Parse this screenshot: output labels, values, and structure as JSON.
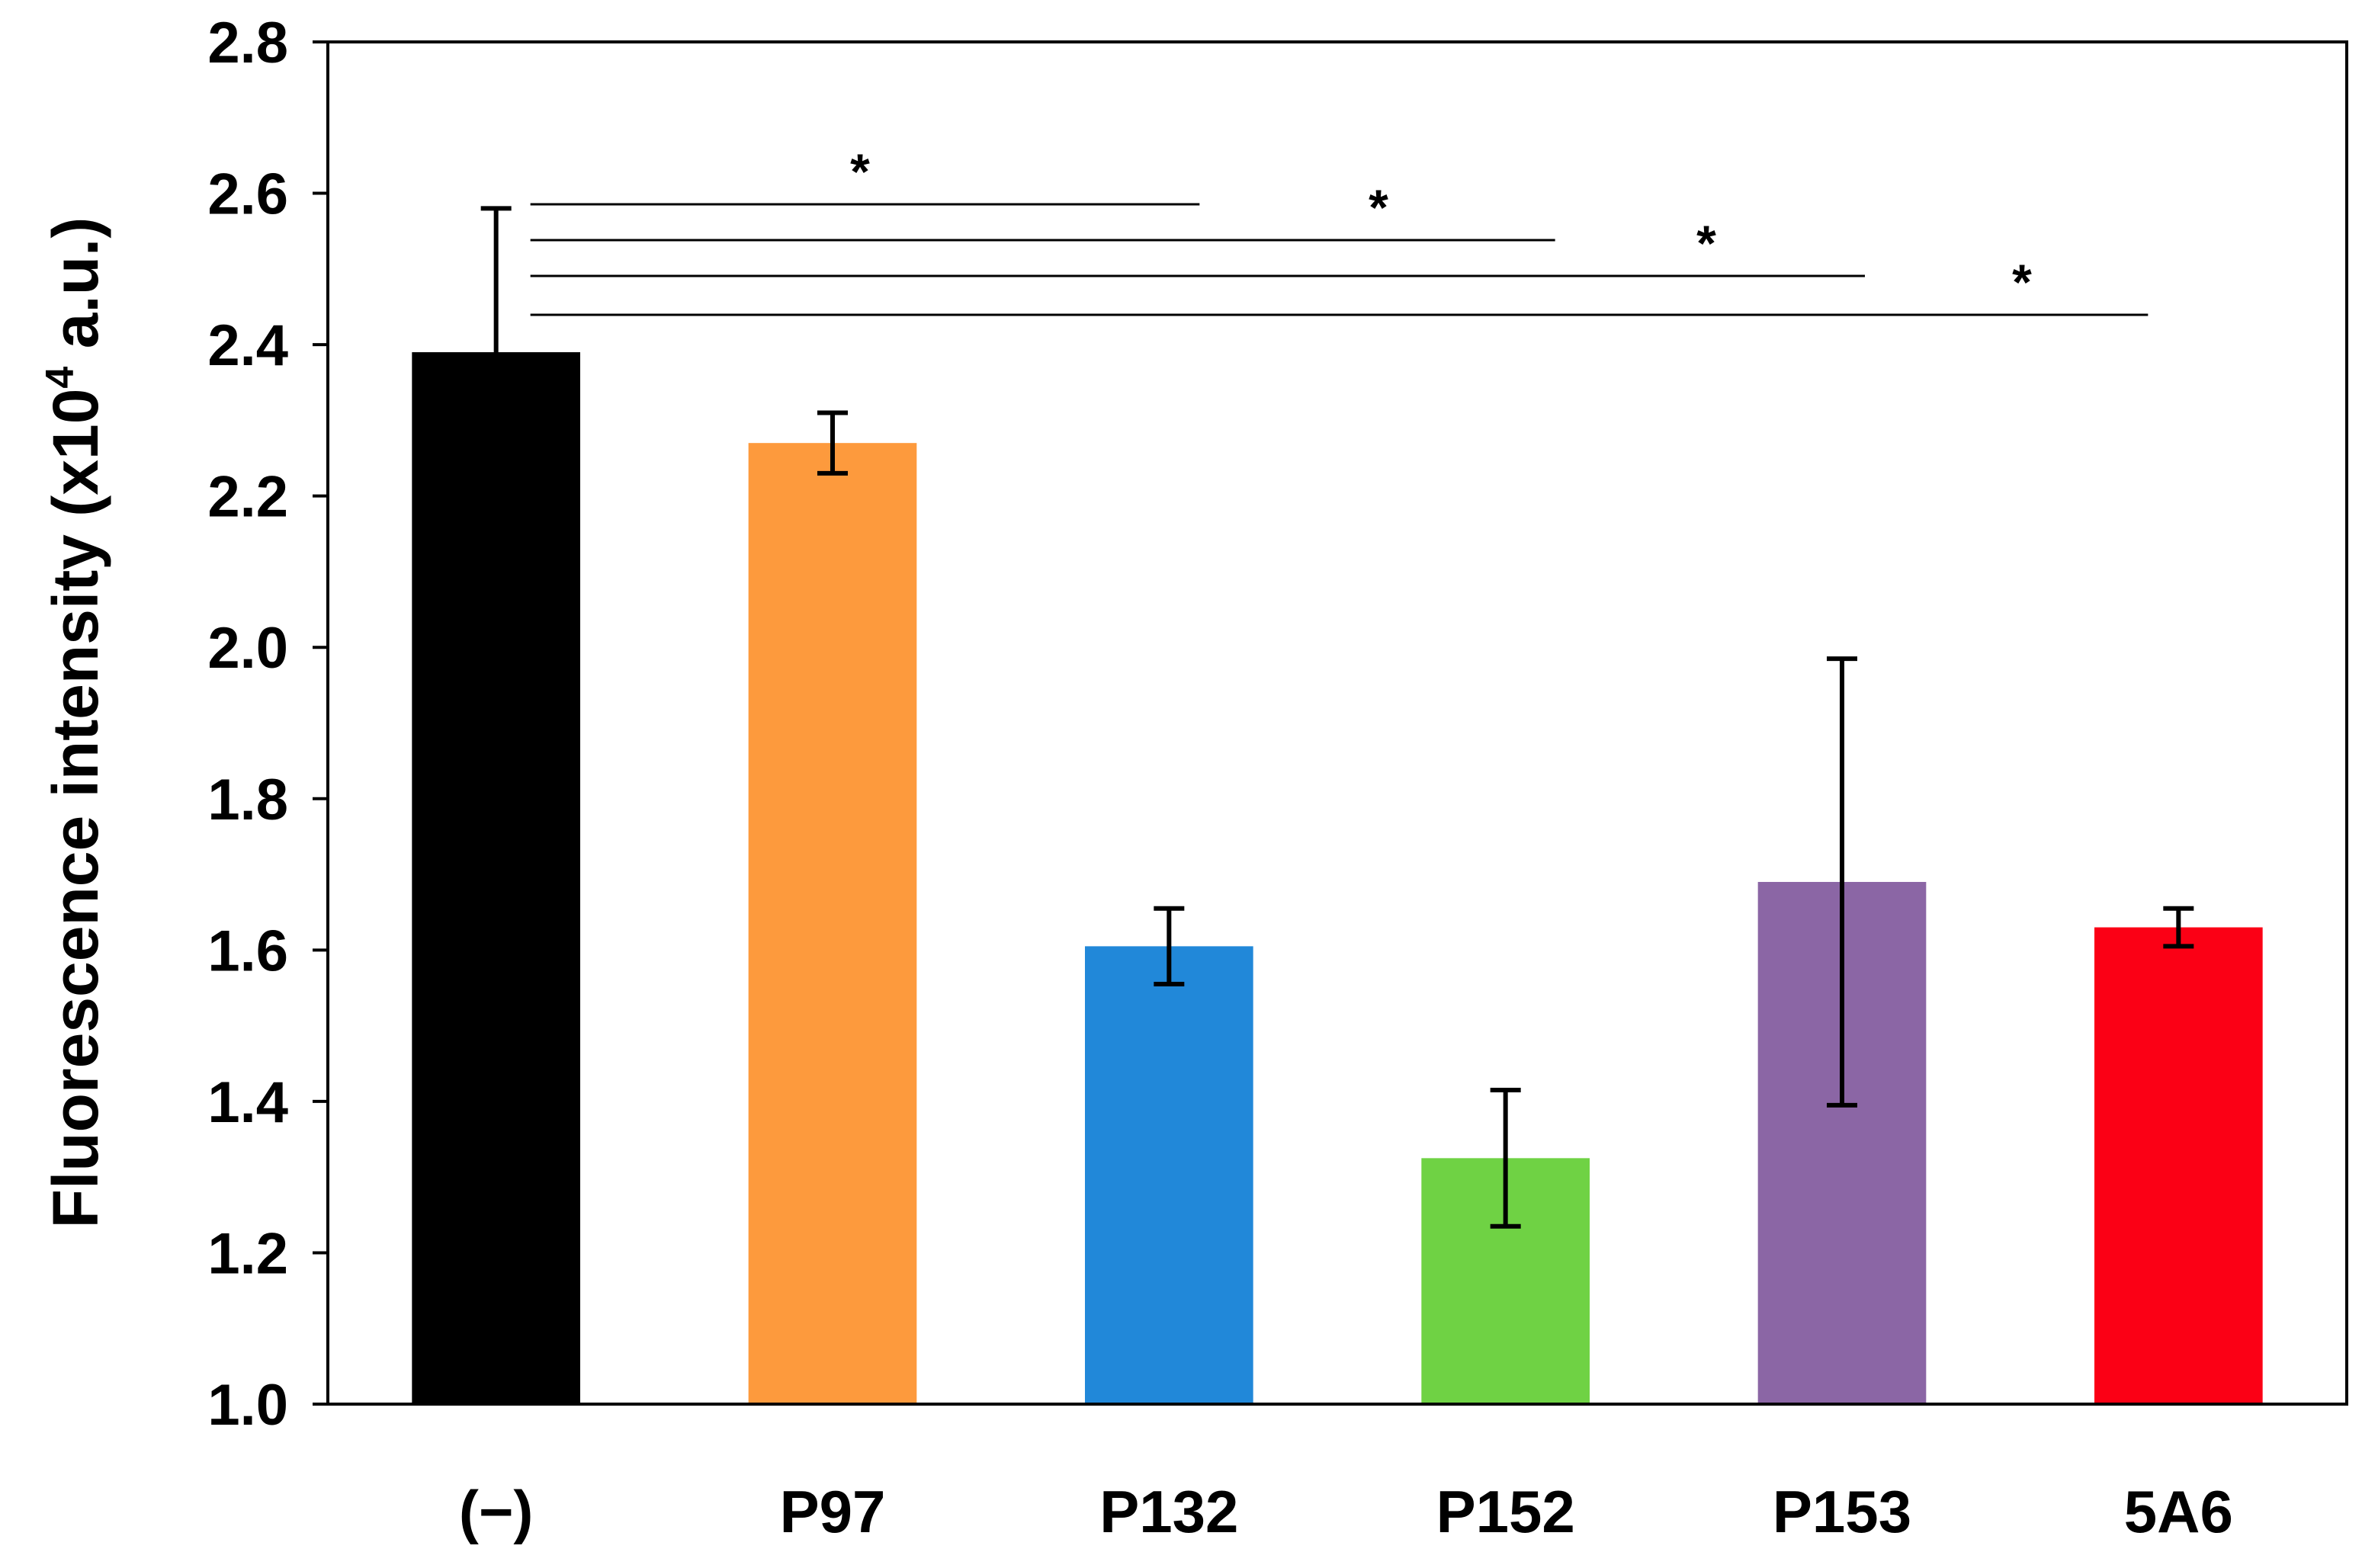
{
  "chart_data": {
    "type": "bar",
    "title": "",
    "xlabel": "",
    "ylabel_main": "Fluorescence intensity (x10",
    "ylabel_sup": "4",
    "ylabel_end": " a.u.)",
    "ylim": [
      1.0,
      2.8
    ],
    "yticks": [
      1.0,
      1.2,
      1.4,
      1.6,
      1.8,
      2.0,
      2.2,
      2.4,
      2.6,
      2.8
    ],
    "ytick_labels": [
      "1.0",
      "1.2",
      "1.4",
      "1.6",
      "1.8",
      "2.0",
      "2.2",
      "2.4",
      "2.6",
      "2.8"
    ],
    "grid": false,
    "legend": "none",
    "categories": [
      "(−)",
      "P97",
      "P132",
      "P152",
      "P153",
      "5A6"
    ],
    "values": [
      2.39,
      2.27,
      1.605,
      1.325,
      1.69,
      1.63
    ],
    "errors": [
      0.19,
      0.04,
      0.05,
      0.09,
      0.295,
      0.025
    ],
    "colors": [
      "#000000",
      "#fd9a3d",
      "#2188d9",
      "#6fd244",
      "#8b66a5",
      "#fb0015"
    ],
    "significance": [
      {
        "from": 0,
        "to": 2,
        "label": "*"
      },
      {
        "from": 0,
        "to": 3,
        "label": "*"
      },
      {
        "from": 0,
        "to": 4,
        "label": "*"
      },
      {
        "from": 0,
        "to": 5,
        "label": "*"
      }
    ]
  }
}
